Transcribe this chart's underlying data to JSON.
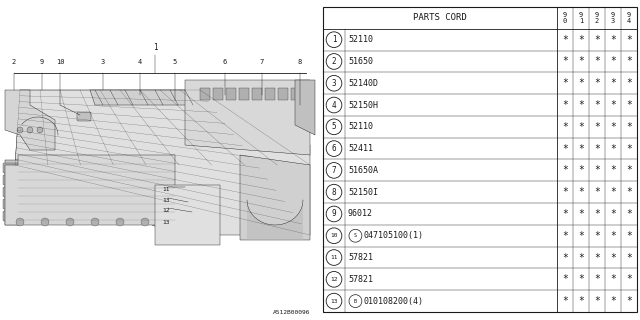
{
  "title": "PARTS CORD",
  "col_headers": [
    "9",
    "9",
    "9",
    "9",
    "9"
  ],
  "col_headers2": [
    "0",
    "1",
    "2",
    "3",
    "4"
  ],
  "rows": [
    {
      "num": "1",
      "code": "52110",
      "special": ""
    },
    {
      "num": "2",
      "code": "51650",
      "special": ""
    },
    {
      "num": "3",
      "code": "52140D",
      "special": ""
    },
    {
      "num": "4",
      "code": "52150H",
      "special": ""
    },
    {
      "num": "5",
      "code": "52110",
      "special": ""
    },
    {
      "num": "6",
      "code": "52411",
      "special": ""
    },
    {
      "num": "7",
      "code": "51650A",
      "special": ""
    },
    {
      "num": "8",
      "code": "52150I",
      "special": ""
    },
    {
      "num": "9",
      "code": "96012",
      "special": ""
    },
    {
      "num": "10",
      "code": "047105100(1)",
      "special": "S"
    },
    {
      "num": "11",
      "code": "57821",
      "special": ""
    },
    {
      "num": "12",
      "code": "57821",
      "special": ""
    },
    {
      "num": "13",
      "code": "010108200(4)",
      "special": "B"
    }
  ],
  "diagram_code": "A512B00096",
  "bg_color": "#ffffff",
  "line_color": "#1a1a1a",
  "gray1": "#cccccc",
  "gray2": "#aaaaaa",
  "gray3": "#e8e8e8"
}
